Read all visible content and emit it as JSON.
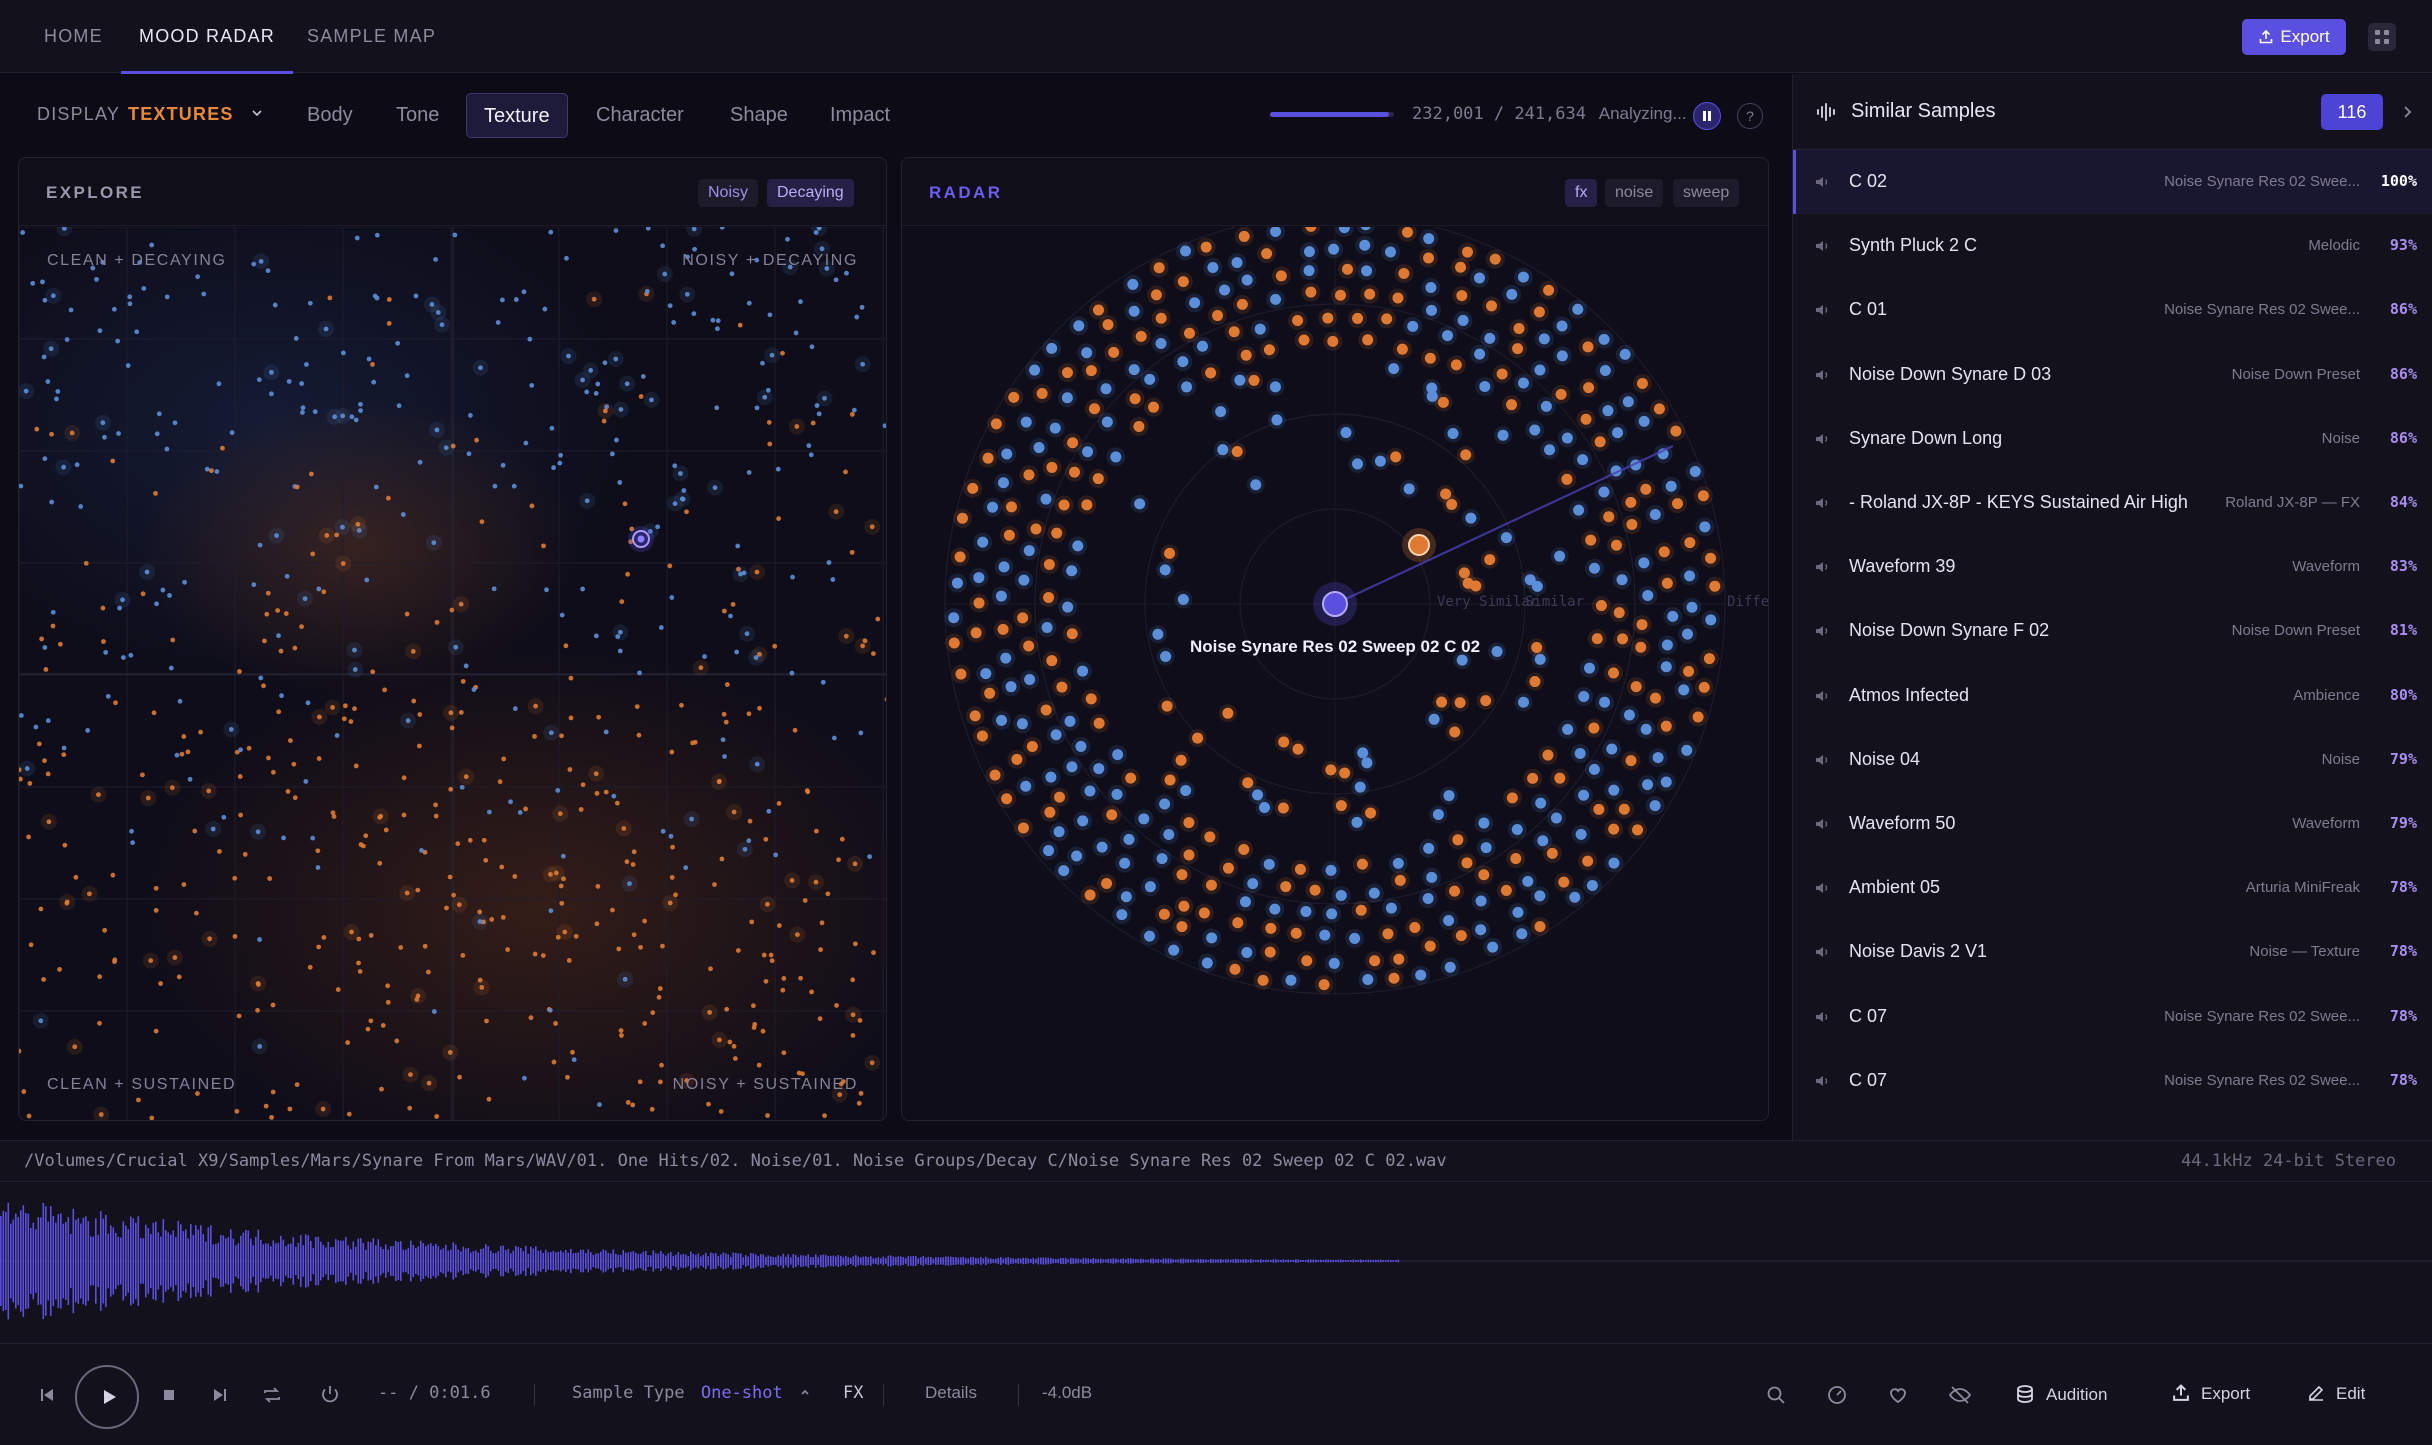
{
  "nav": {
    "tabs": [
      {
        "label": "HOME"
      },
      {
        "label": "MOOD RADAR"
      },
      {
        "label": "SAMPLE MAP"
      }
    ],
    "export_label": "Export"
  },
  "toolbar": {
    "display_label": "DISPLAY",
    "display_value": "TEXTURES",
    "tabs": [
      "Body",
      "Tone",
      "Texture",
      "Character",
      "Shape",
      "Impact"
    ],
    "active_tab": "Texture",
    "progress_text": "232,001 / 241,634",
    "progress_fraction": 0.96,
    "status": "Analyzing...",
    "help": "?"
  },
  "explore": {
    "title": "EXPLORE",
    "chips": [
      "Noisy",
      "Decaying"
    ],
    "corners": {
      "top_left": "CLEAN + DECAYING",
      "top_right": "NOISY + DECAYING",
      "bottom_left": "CLEAN + SUSTAINED",
      "bottom_right": "NOISY + SUSTAINED"
    }
  },
  "radar": {
    "title": "RADAR",
    "chips": [
      "fx",
      "noise",
      "sweep"
    ],
    "center_label": "Noise Synare Res 02 Sweep 02 C 02",
    "ring_labels": [
      "Very Similar",
      "Similar",
      "Diffe"
    ]
  },
  "similar": {
    "title": "Similar Samples",
    "count": "116",
    "rows": [
      {
        "name": "C 02",
        "tag": "Noise Synare Res 02 Swee...",
        "pct": "100%"
      },
      {
        "name": "Synth Pluck 2 C",
        "tag": "Melodic",
        "pct": "93%"
      },
      {
        "name": "C 01",
        "tag": "Noise Synare Res 02 Swee...",
        "pct": "86%"
      },
      {
        "name": "Noise Down Synare D 03",
        "tag": "Noise Down Preset",
        "pct": "86%"
      },
      {
        "name": "Synare Down Long",
        "tag": "Noise",
        "pct": "86%"
      },
      {
        "name": "- Roland JX-8P - KEYS Sustained Air High",
        "tag": "Roland JX-8P — FX",
        "pct": "84%"
      },
      {
        "name": "Waveform 39",
        "tag": "Waveform",
        "pct": "83%"
      },
      {
        "name": "Noise Down Synare F 02",
        "tag": "Noise Down Preset",
        "pct": "81%"
      },
      {
        "name": "Atmos Infected",
        "tag": "Ambience",
        "pct": "80%"
      },
      {
        "name": "Noise 04",
        "tag": "Noise",
        "pct": "79%"
      },
      {
        "name": "Waveform 50",
        "tag": "Waveform",
        "pct": "79%"
      },
      {
        "name": "Ambient 05",
        "tag": "Arturia MiniFreak",
        "pct": "78%"
      },
      {
        "name": "Noise Davis 2 V1",
        "tag": "Noise — Texture",
        "pct": "78%"
      },
      {
        "name": "C 07",
        "tag": "Noise Synare Res 02 Swee...",
        "pct": "78%"
      },
      {
        "name": "C 07",
        "tag": "Noise Synare Res 02 Swee...",
        "pct": "78%"
      }
    ]
  },
  "file": {
    "path": "/Volumes/Crucial X9/Samples/Mars/Synare From Mars/WAV/01. One Hits/02. Noise/01. Noise Groups/Decay C/Noise Synare Res 02 Sweep 02 C 02.wav",
    "format": "44.1kHz 24-bit Stereo"
  },
  "transport": {
    "time": "-- / 0:01.6",
    "sample_type_label": "Sample Type",
    "sample_type_value": "One-shot",
    "category": "FX",
    "details": "Details",
    "gain": "-4.0dB",
    "audition": "Audition",
    "export": "Export",
    "edit": "Edit"
  },
  "colors": {
    "accent": "#5b4fe0",
    "blue_dot": "#5b8fd9",
    "orange_dot": "#e07a32",
    "display_value": "#e8893a"
  }
}
